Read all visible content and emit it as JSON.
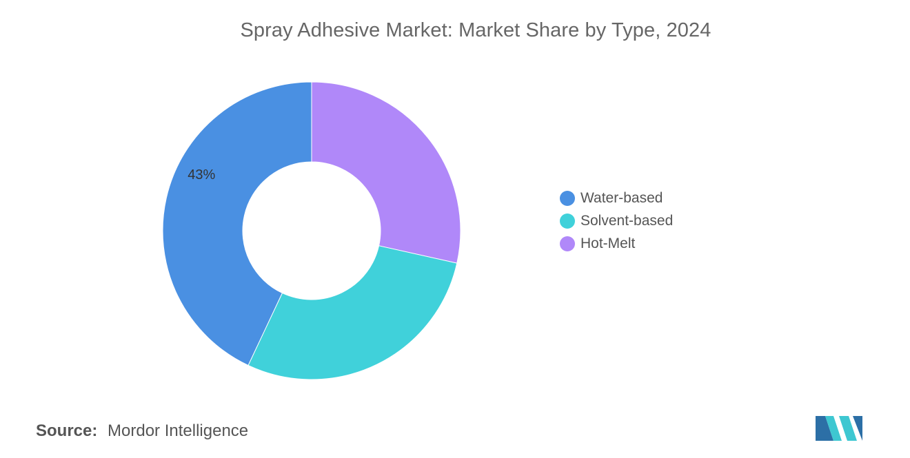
{
  "chart_data": {
    "type": "pie",
    "variant": "donut",
    "title": "Spray Adhesive Market: Market Share by Type, 2024",
    "categories": [
      "Water-based",
      "Solvent-based",
      "Hot-Melt"
    ],
    "values": [
      43,
      28.5,
      28.5
    ],
    "data_labels": [
      "43%",
      "",
      ""
    ],
    "colors": [
      "#4a90e2",
      "#40d1da",
      "#b088f9"
    ],
    "legend_position": "right"
  },
  "source": {
    "label": "Source:",
    "text": "Mordor Intelligence"
  },
  "logo": {
    "icon": "mordor-intelligence-logo-icon",
    "colors": [
      "#2c6fa6",
      "#3ec7d1"
    ]
  }
}
